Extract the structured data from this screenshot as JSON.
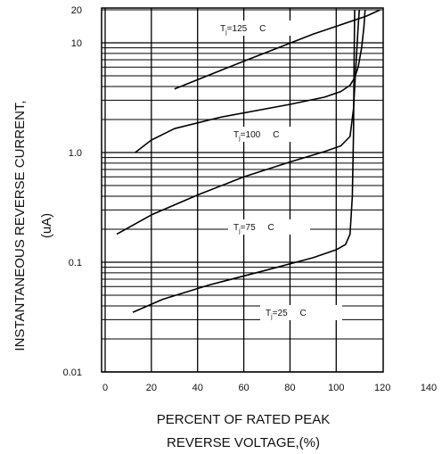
{
  "chart_data": {
    "type": "line",
    "ylabel": "INSTANTANEOUS REVERSE CURRENT,",
    "ylabel_unit": "(uA)",
    "xlabel_line1": "PERCENT OF RATED PEAK",
    "xlabel_line2": "REVERSE VOLTAGE,(%)",
    "x_scale": "linear",
    "y_scale": "log",
    "xlim": [
      0,
      140
    ],
    "ylim": [
      0.01,
      20
    ],
    "x_ticks": [
      0,
      20,
      40,
      60,
      80,
      100,
      120,
      140
    ],
    "x_tick_labels": [
      "0",
      "20",
      "40",
      "60",
      "80",
      "100",
      "120",
      "140"
    ],
    "y_ticks": [
      0.01,
      0.1,
      1.0,
      10,
      20
    ],
    "y_tick_labels": [
      "0.01",
      "0.1",
      "1.0",
      "10",
      "20"
    ],
    "grid": true,
    "series": [
      {
        "name": "Tj=125 C",
        "label_main": "T",
        "label_sub": "j",
        "label_rest": "=125 C",
        "x": [
          30,
          60,
          90,
          113,
          119
        ],
        "y": [
          3.8,
          6.8,
          12,
          17.5,
          20
        ]
      },
      {
        "name": "Tj=100 C",
        "label_main": "T",
        "label_sub": "j",
        "label_rest": "=100 C",
        "x": [
          13,
          20,
          30,
          50,
          80,
          95,
          102,
          106,
          108,
          109.5,
          111,
          112,
          112.5
        ],
        "y": [
          1.0,
          1.3,
          1.65,
          2.1,
          2.75,
          3.2,
          3.6,
          4.1,
          4.8,
          6,
          9,
          14,
          20
        ]
      },
      {
        "name": "Tj=75 C",
        "label_main": "T",
        "label_sub": "j",
        "label_rest": "=75 C",
        "x": [
          5,
          20,
          40,
          60,
          80,
          95,
          102,
          106,
          107.5,
          108.5,
          109.5,
          110
        ],
        "y": [
          0.18,
          0.27,
          0.41,
          0.6,
          0.82,
          1.02,
          1.15,
          1.4,
          2.5,
          6,
          14,
          20
        ]
      },
      {
        "name": "Tj=25 C",
        "label_main": "T",
        "label_sub": "j",
        "label_rest": "=25 C",
        "x": [
          12,
          25,
          45,
          70,
          90,
          100,
          104,
          106,
          107,
          107.5,
          107.7,
          108
        ],
        "y": [
          0.035,
          0.046,
          0.062,
          0.085,
          0.11,
          0.13,
          0.145,
          0.18,
          0.4,
          1.5,
          6,
          20
        ]
      }
    ]
  }
}
